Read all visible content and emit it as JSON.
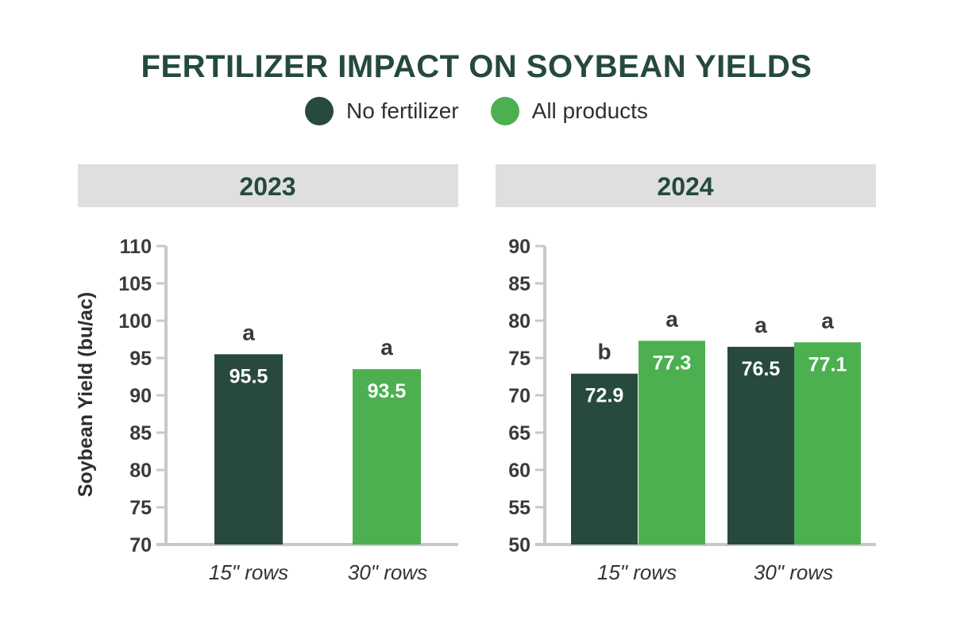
{
  "title": "FERTILIZER IMPACT ON SOYBEAN YIELDS",
  "legend": [
    {
      "name": "No fertilizer",
      "color": "#274a3d"
    },
    {
      "name": "All products",
      "color": "#4caf50"
    }
  ],
  "colors": {
    "panel_header_bg": "#dfdfdf",
    "axis": "#c8c8c8"
  },
  "chart_data": [
    {
      "type": "bar",
      "title": "2023",
      "ylabel": "Soybean Yield (bu/ac)",
      "ylim": [
        70,
        110
      ],
      "yticks": [
        70,
        75,
        80,
        85,
        90,
        95,
        100,
        105,
        110
      ],
      "categories": [
        "15\" rows",
        "30\" rows"
      ],
      "bars": [
        {
          "category": "15\" rows",
          "series": "No fertilizer",
          "value": 95.5,
          "label": "95.5",
          "letter": "a"
        },
        {
          "category": "30\" rows",
          "series": "All products",
          "value": 93.5,
          "label": "93.5",
          "letter": "a"
        }
      ]
    },
    {
      "type": "bar",
      "title": "2024",
      "ylim": [
        50,
        90
      ],
      "yticks": [
        50,
        55,
        60,
        65,
        70,
        75,
        80,
        85,
        90
      ],
      "categories": [
        "15\" rows",
        "30\" rows"
      ],
      "series": [
        {
          "name": "No fertilizer",
          "values": [
            72.9,
            76.5
          ],
          "labels": [
            "72.9",
            "76.5"
          ],
          "letters": [
            "b",
            "a"
          ]
        },
        {
          "name": "All products",
          "values": [
            77.3,
            77.1
          ],
          "labels": [
            "77.3",
            "77.1"
          ],
          "letters": [
            "a",
            "a"
          ]
        }
      ]
    }
  ]
}
